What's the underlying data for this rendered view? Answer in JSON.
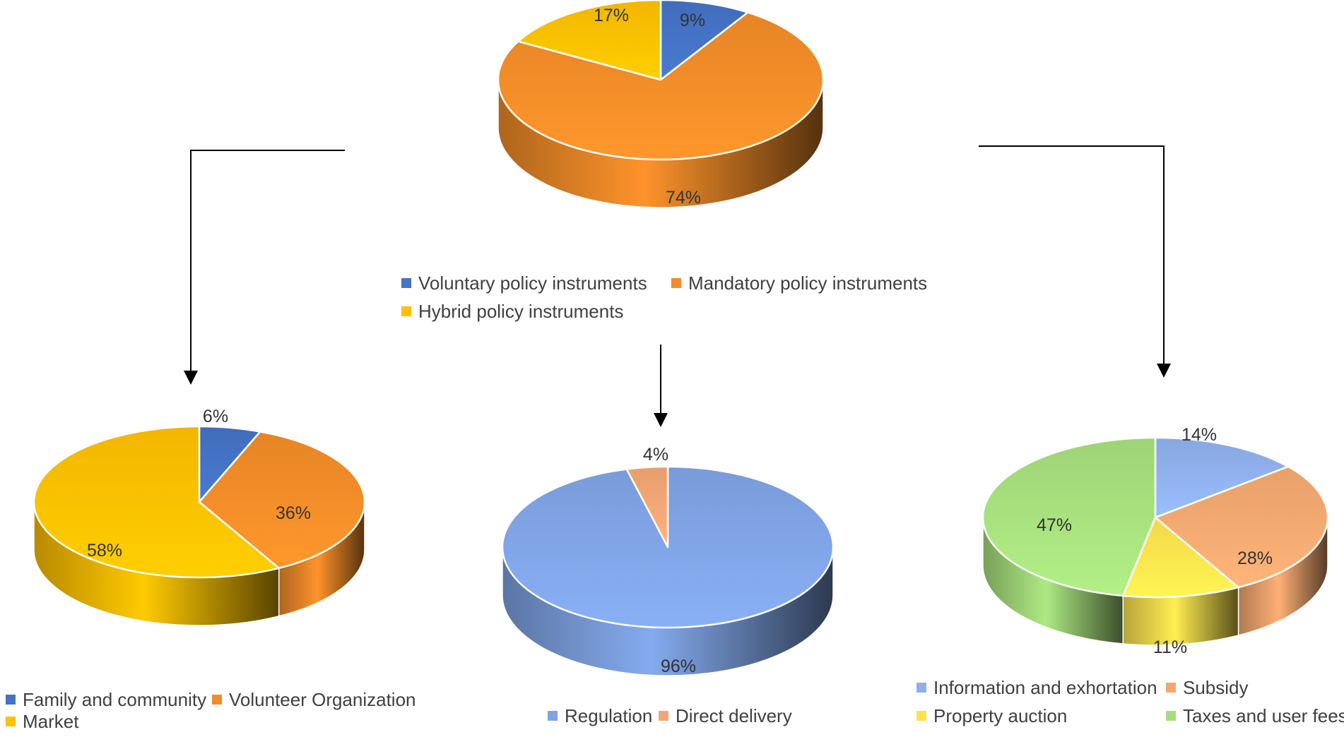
{
  "chart_data": [
    {
      "type": "pie",
      "title": "",
      "categories": [
        "Voluntary policy instruments",
        "Mandatory policy instruments",
        "Hybrid policy instruments"
      ],
      "values": [
        9,
        74,
        17
      ],
      "labels": [
        "9%",
        "74%",
        "17%"
      ],
      "colors": [
        "#4472C4",
        "#F28C28",
        "#FFC000"
      ],
      "legend": "bottom"
    },
    {
      "type": "pie",
      "title": "",
      "categories": [
        "Family and community",
        "Volunteer Organization",
        "Market"
      ],
      "values": [
        6,
        36,
        58
      ],
      "labels": [
        "6%",
        "36%",
        "58%"
      ],
      "colors": [
        "#4472C4",
        "#F28C28",
        "#FFC000"
      ],
      "legend": "bottom"
    },
    {
      "type": "pie",
      "title": "",
      "categories": [
        "Regulation",
        "Direct delivery"
      ],
      "values": [
        96,
        4
      ],
      "labels": [
        "96%",
        "4%"
      ],
      "colors": [
        "#7FA3E4",
        "#F4A574"
      ],
      "legend": "bottom"
    },
    {
      "type": "pie",
      "title": "",
      "categories": [
        "Information and exhortation",
        "Subsidy",
        "Property auction",
        "Taxes and user fees"
      ],
      "values": [
        14,
        28,
        11,
        47
      ],
      "labels": [
        "14%",
        "28%",
        "11%",
        "47%"
      ],
      "colors": [
        "#8FB0EC",
        "#F4A870",
        "#FFE34D",
        "#A6DE7C"
      ],
      "legend": "bottom"
    }
  ]
}
